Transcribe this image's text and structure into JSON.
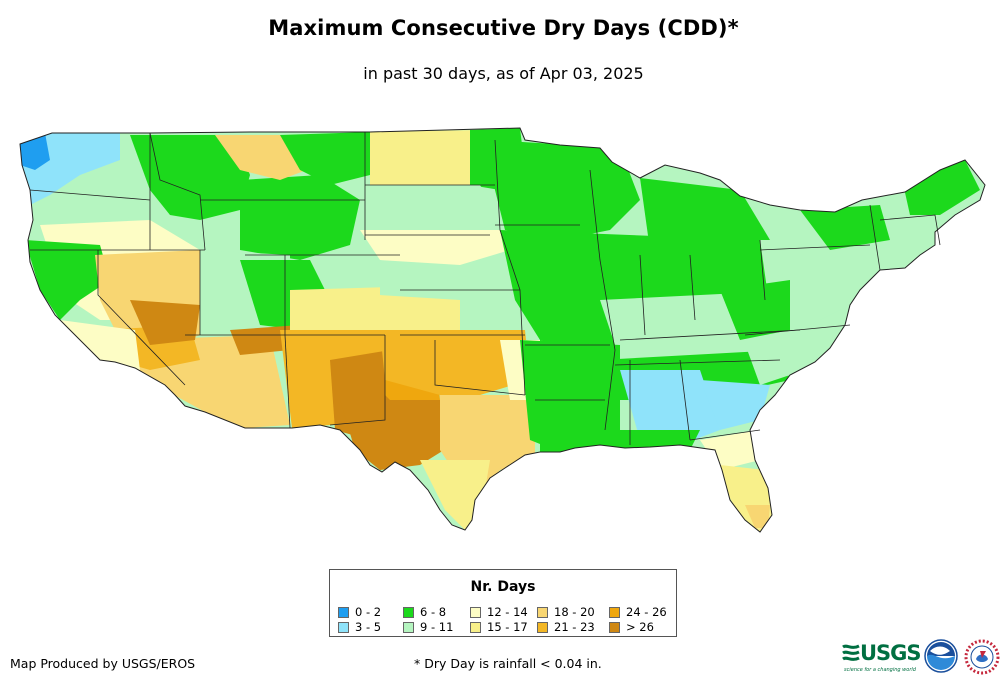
{
  "header": {
    "title": "Maximum Consecutive Dry Days (CDD)*",
    "subtitle": "in past 30 days, as of Apr 03, 2025"
  },
  "legend": {
    "title": "Nr. Days",
    "items": [
      {
        "label": "0 - 2",
        "color": "#1f9ef0"
      },
      {
        "label": "3 - 5",
        "color": "#8fe3fa"
      },
      {
        "label": "6 - 8",
        "color": "#1cd91c"
      },
      {
        "label": "9 - 11",
        "color": "#b5f5c0"
      },
      {
        "label": "12 - 14",
        "color": "#fdfdc5"
      },
      {
        "label": "15 - 17",
        "color": "#f8f08a"
      },
      {
        "label": "18 - 20",
        "color": "#f8d672"
      },
      {
        "label": "21 - 23",
        "color": "#f3b725"
      },
      {
        "label": "24 - 26",
        "color": "#efa70e"
      },
      {
        "label": "> 26",
        "color": "#cf8813"
      }
    ]
  },
  "footer": {
    "credit": "Map Produced by USGS/EROS",
    "footnote": "* Dry Day is rainfall < 0.04 in."
  },
  "logos": {
    "usgs": "USGS",
    "usgs_tagline": "science for a changing world"
  }
}
